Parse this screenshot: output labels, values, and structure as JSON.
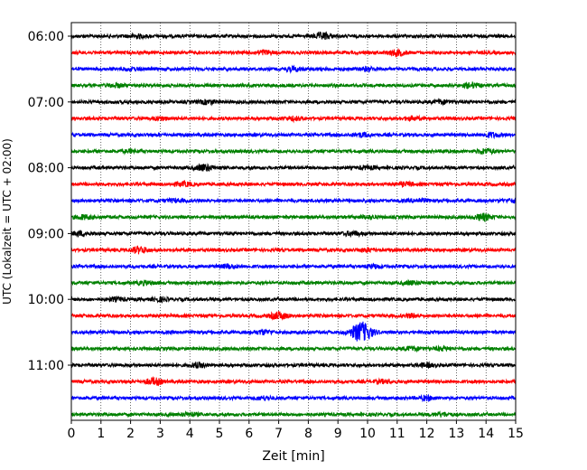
{
  "chart_data": {
    "type": "line",
    "title": "",
    "xlabel": "Zeit  [min]",
    "ylabel": "UTC (Lokalzeit = UTC + 02:00)",
    "xlim": [
      0,
      15
    ],
    "x_ticks": [
      "0",
      "1",
      "2",
      "3",
      "4",
      "5",
      "6",
      "7",
      "8",
      "9",
      "10",
      "11",
      "12",
      "13",
      "14",
      "15"
    ],
    "y_ticks": [
      "06:00",
      "07:00",
      "08:00",
      "09:00",
      "10:00",
      "11:00"
    ],
    "grid": "vertical dotted",
    "colors": [
      "#000000",
      "#ff0000",
      "#0000ff",
      "#008000"
    ],
    "trace_interval_min": 15,
    "series": [
      {
        "start": "06:00",
        "color": "#000000",
        "events": [
          {
            "t": 2.2,
            "a": 0.5
          },
          {
            "t": 8.5,
            "a": 1.0
          }
        ]
      },
      {
        "start": "06:15",
        "color": "#ff0000",
        "events": [
          {
            "t": 6.5,
            "a": 0.6
          },
          {
            "t": 11.0,
            "a": 0.9
          }
        ]
      },
      {
        "start": "06:30",
        "color": "#0000ff",
        "events": [
          {
            "t": 2.0,
            "a": 0.4
          },
          {
            "t": 7.5,
            "a": 0.6
          },
          {
            "t": 10.0,
            "a": 0.5
          }
        ]
      },
      {
        "start": "06:45",
        "color": "#008000",
        "events": [
          {
            "t": 1.5,
            "a": 0.5
          },
          {
            "t": 13.5,
            "a": 0.7
          }
        ]
      },
      {
        "start": "07:00",
        "color": "#000000",
        "events": [
          {
            "t": 4.6,
            "a": 0.6
          },
          {
            "t": 12.5,
            "a": 0.5
          }
        ]
      },
      {
        "start": "07:15",
        "color": "#ff0000",
        "events": [
          {
            "t": 3.0,
            "a": 0.5
          },
          {
            "t": 7.5,
            "a": 0.5
          },
          {
            "t": 11.5,
            "a": 0.5
          }
        ]
      },
      {
        "start": "07:30",
        "color": "#0000ff",
        "events": [
          {
            "t": 9.8,
            "a": 0.6
          },
          {
            "t": 14.2,
            "a": 0.6
          }
        ]
      },
      {
        "start": "07:45",
        "color": "#008000",
        "events": [
          {
            "t": 2.0,
            "a": 0.4
          },
          {
            "t": 14.0,
            "a": 0.7
          }
        ]
      },
      {
        "start": "08:00",
        "color": "#000000",
        "events": [
          {
            "t": 4.5,
            "a": 1.0
          },
          {
            "t": 10.0,
            "a": 0.4
          }
        ]
      },
      {
        "start": "08:15",
        "color": "#ff0000",
        "events": [
          {
            "t": 3.8,
            "a": 0.6
          },
          {
            "t": 11.3,
            "a": 0.5
          }
        ]
      },
      {
        "start": "08:30",
        "color": "#0000ff",
        "events": [
          {
            "t": 3.5,
            "a": 0.4
          },
          {
            "t": 11.7,
            "a": 0.5
          },
          {
            "t": 15.0,
            "a": 0.5
          }
        ]
      },
      {
        "start": "08:45",
        "color": "#008000",
        "events": [
          {
            "t": 0.4,
            "a": 0.6
          },
          {
            "t": 10.0,
            "a": 0.4
          },
          {
            "t": 13.9,
            "a": 1.0
          }
        ]
      },
      {
        "start": "09:00",
        "color": "#000000",
        "events": [
          {
            "t": 0.3,
            "a": 0.6
          },
          {
            "t": 9.5,
            "a": 0.6
          }
        ]
      },
      {
        "start": "09:15",
        "color": "#ff0000",
        "events": [
          {
            "t": 2.3,
            "a": 1.0
          },
          {
            "t": 10.0,
            "a": 0.5
          }
        ]
      },
      {
        "start": "09:30",
        "color": "#0000ff",
        "events": [
          {
            "t": 5.3,
            "a": 0.5
          },
          {
            "t": 10.2,
            "a": 0.5
          }
        ]
      },
      {
        "start": "09:45",
        "color": "#008000",
        "events": [
          {
            "t": 2.5,
            "a": 0.5
          },
          {
            "t": 11.5,
            "a": 0.5
          }
        ]
      },
      {
        "start": "10:00",
        "color": "#000000",
        "events": [
          {
            "t": 1.5,
            "a": 0.5
          },
          {
            "t": 3.0,
            "a": 0.5
          }
        ]
      },
      {
        "start": "10:15",
        "color": "#ff0000",
        "events": [
          {
            "t": 7.0,
            "a": 1.1
          },
          {
            "t": 11.5,
            "a": 0.5
          }
        ]
      },
      {
        "start": "10:30",
        "color": "#0000ff",
        "events": [
          {
            "t": 9.8,
            "a": 3.2
          },
          {
            "t": 6.5,
            "a": 0.6
          }
        ]
      },
      {
        "start": "10:45",
        "color": "#008000",
        "events": [
          {
            "t": 11.5,
            "a": 0.6
          },
          {
            "t": 12.5,
            "a": 0.5
          }
        ]
      },
      {
        "start": "11:00",
        "color": "#000000",
        "events": [
          {
            "t": 4.3,
            "a": 0.6
          },
          {
            "t": 12.0,
            "a": 0.5
          }
        ]
      },
      {
        "start": "11:15",
        "color": "#ff0000",
        "events": [
          {
            "t": 2.8,
            "a": 1.0
          },
          {
            "t": 10.5,
            "a": 0.4
          }
        ]
      },
      {
        "start": "11:30",
        "color": "#0000ff",
        "events": [
          {
            "t": 6.5,
            "a": 0.5
          },
          {
            "t": 12.0,
            "a": 0.6
          }
        ]
      },
      {
        "start": "11:45",
        "color": "#008000",
        "events": [
          {
            "t": 4.0,
            "a": 0.5
          },
          {
            "t": 12.5,
            "a": 0.5
          }
        ]
      }
    ]
  }
}
